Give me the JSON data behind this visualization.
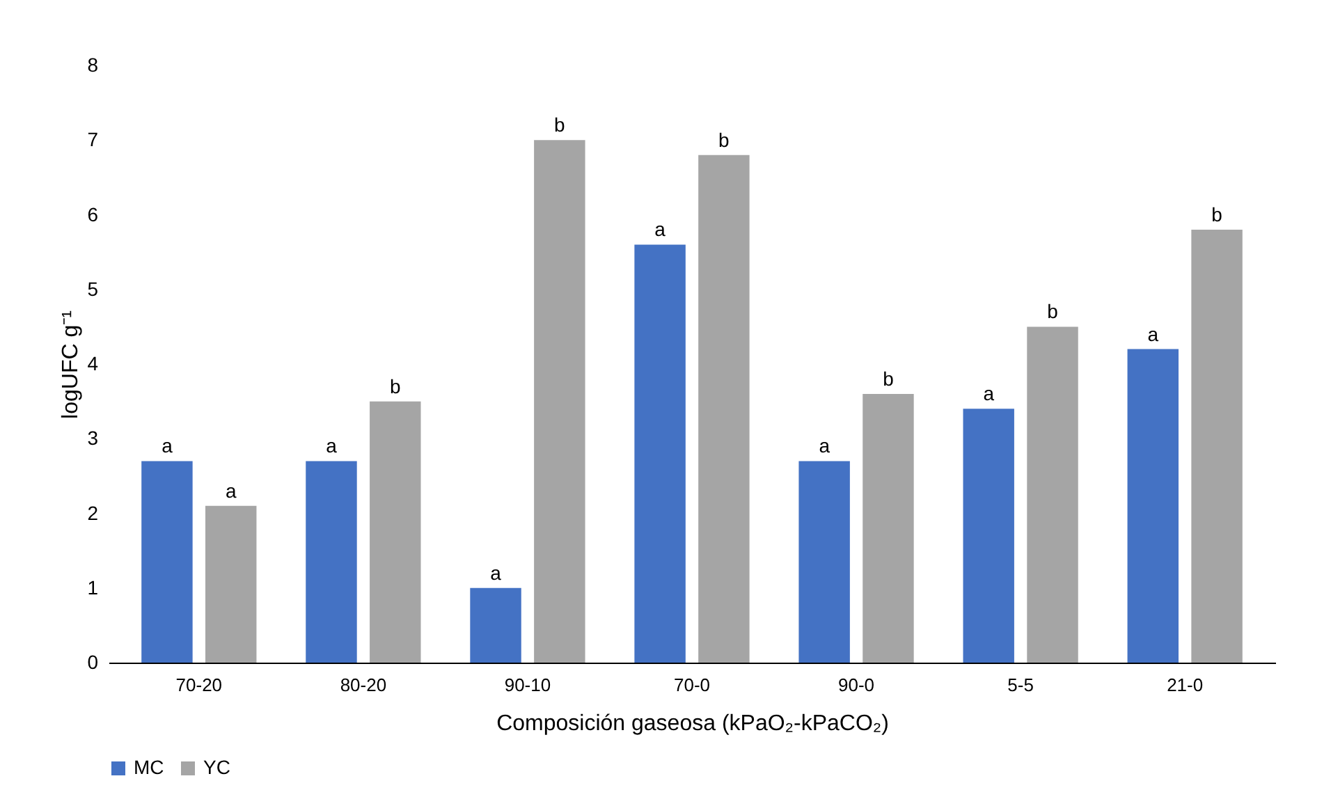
{
  "chart_data": {
    "type": "bar",
    "xlabel": "Composición gaseosa (kPaO₂-kPaCO₂)",
    "ylabel": "logUFC g⁻¹",
    "categories": [
      "70-20",
      "80-20",
      "90-10",
      "70-0",
      "90-0",
      "5-5",
      "21-0"
    ],
    "series": [
      {
        "name": "MC",
        "color": "#4472c4",
        "values": [
          2.7,
          2.7,
          1.0,
          5.6,
          2.7,
          3.4,
          4.2
        ],
        "value_labels": [
          "a",
          "a",
          "a",
          "a",
          "a",
          "a",
          "a"
        ]
      },
      {
        "name": "YC",
        "color": "#a5a5a5",
        "values": [
          2.1,
          3.5,
          7.0,
          6.8,
          3.6,
          4.5,
          5.8
        ],
        "value_labels": [
          "a",
          "b",
          "b",
          "b",
          "b",
          "b",
          "b"
        ]
      }
    ],
    "ylim": [
      0,
      8
    ],
    "yticks": [
      0,
      1,
      2,
      3,
      4,
      5,
      6,
      7,
      8
    ],
    "grid": false,
    "legend": "bottom"
  }
}
